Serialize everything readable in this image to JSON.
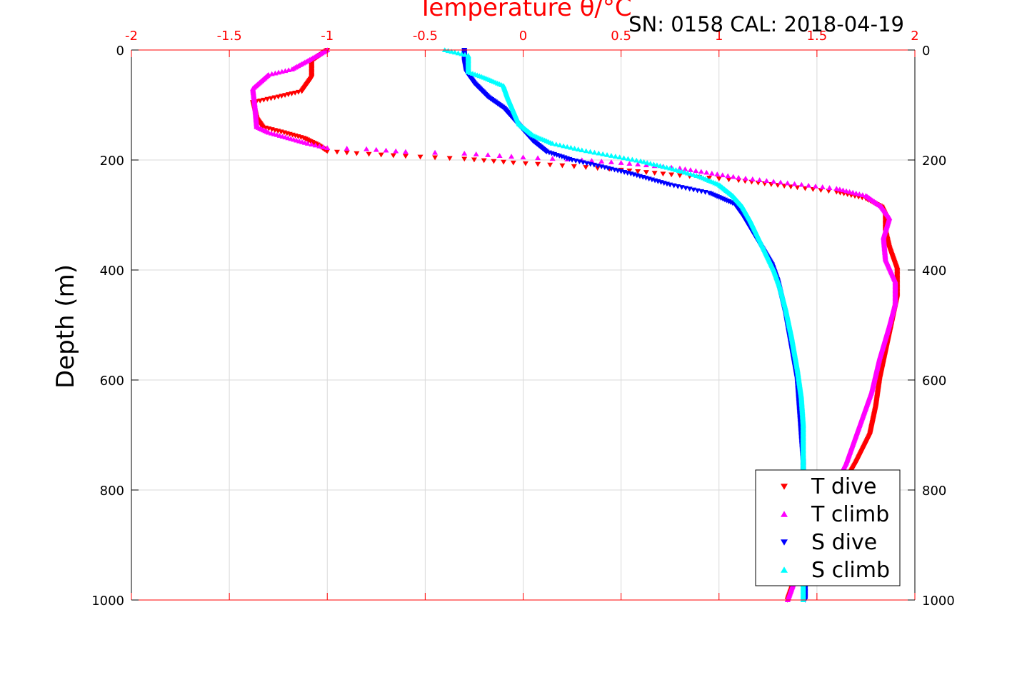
{
  "header": {
    "title": "Temperature θ/°C",
    "annotation": "SN: 0158  CAL: 2018-04-19"
  },
  "chart_data": {
    "type": "scatter",
    "title": "Temperature θ/°C",
    "xlabel": "Temperature θ/°C",
    "ylabel": "Depth (m)",
    "xlim": [
      -2,
      2
    ],
    "ylim": [
      0,
      1000
    ],
    "y_reversed": true,
    "grid": true,
    "x_ticks": [
      "-2",
      "-1.5",
      "-1",
      "-0.5",
      "0",
      "0.5",
      "1",
      "1.5",
      "2"
    ],
    "y_ticks": [
      "0",
      "200",
      "400",
      "600",
      "800",
      "1000"
    ],
    "axis_colors": {
      "top": "#ff0000",
      "bottom": "#ff0000",
      "left": "#000000",
      "right": "#000000",
      "grid": "#d9d9d9"
    },
    "legend_position": "bottom-right",
    "series": [
      {
        "name": "T dive",
        "color": "#ff0000",
        "marker": "triangle-down",
        "points": [
          [
            -1.0,
            0
          ],
          [
            -1.08,
            20
          ],
          [
            -1.08,
            50
          ],
          [
            -1.13,
            75
          ],
          [
            -1.25,
            85
          ],
          [
            -1.38,
            95
          ],
          [
            -1.37,
            110
          ],
          [
            -1.36,
            125
          ],
          [
            -1.33,
            140
          ],
          [
            -1.22,
            150
          ],
          [
            -1.12,
            160
          ],
          [
            -1.05,
            172
          ],
          [
            -1.0,
            184
          ],
          [
            -0.85,
            188
          ],
          [
            -0.6,
            193
          ],
          [
            -0.3,
            198
          ],
          [
            -0.05,
            205
          ],
          [
            0.2,
            210
          ],
          [
            0.5,
            218
          ],
          [
            0.8,
            228
          ],
          [
            1.1,
            237
          ],
          [
            1.4,
            250
          ],
          [
            1.6,
            258
          ],
          [
            1.75,
            270
          ],
          [
            1.83,
            285
          ],
          [
            1.85,
            300
          ],
          [
            1.85,
            330
          ],
          [
            1.87,
            360
          ],
          [
            1.91,
            400
          ],
          [
            1.91,
            450
          ],
          [
            1.88,
            500
          ],
          [
            1.85,
            550
          ],
          [
            1.82,
            600
          ],
          [
            1.8,
            650
          ],
          [
            1.77,
            700
          ],
          [
            1.7,
            750
          ],
          [
            1.62,
            800
          ],
          [
            1.55,
            850
          ],
          [
            1.48,
            900
          ],
          [
            1.4,
            950
          ],
          [
            1.35,
            1000
          ]
        ]
      },
      {
        "name": "T climb",
        "color": "#ff00ff",
        "marker": "triangle-up",
        "points": [
          [
            -1.0,
            0
          ],
          [
            -1.05,
            10
          ],
          [
            -1.18,
            35
          ],
          [
            -1.3,
            45
          ],
          [
            -1.38,
            70
          ],
          [
            -1.37,
            100
          ],
          [
            -1.36,
            140
          ],
          [
            -1.3,
            150
          ],
          [
            -1.2,
            160
          ],
          [
            -1.1,
            170
          ],
          [
            -1.0,
            178
          ],
          [
            -0.8,
            180
          ],
          [
            -0.6,
            185
          ],
          [
            -0.3,
            188
          ],
          [
            0.0,
            195
          ],
          [
            0.3,
            200
          ],
          [
            0.5,
            205
          ],
          [
            0.8,
            215
          ],
          [
            1.1,
            232
          ],
          [
            1.35,
            242
          ],
          [
            1.6,
            252
          ],
          [
            1.75,
            265
          ],
          [
            1.83,
            285
          ],
          [
            1.87,
            305
          ],
          [
            1.84,
            340
          ],
          [
            1.85,
            380
          ],
          [
            1.9,
            420
          ],
          [
            1.9,
            460
          ],
          [
            1.87,
            500
          ],
          [
            1.82,
            560
          ],
          [
            1.78,
            620
          ],
          [
            1.72,
            680
          ],
          [
            1.65,
            750
          ],
          [
            1.58,
            800
          ],
          [
            1.5,
            850
          ],
          [
            1.45,
            900
          ],
          [
            1.4,
            950
          ],
          [
            1.35,
            1000
          ]
        ]
      },
      {
        "name": "S dive",
        "color": "#0000ff",
        "marker": "triangle-down",
        "points": [
          [
            -0.3,
            0
          ],
          [
            -0.3,
            20
          ],
          [
            -0.29,
            40
          ],
          [
            -0.25,
            60
          ],
          [
            -0.18,
            85
          ],
          [
            -0.1,
            105
          ],
          [
            -0.05,
            125
          ],
          [
            0.0,
            145
          ],
          [
            0.05,
            165
          ],
          [
            0.12,
            185
          ],
          [
            0.25,
            200
          ],
          [
            0.4,
            212
          ],
          [
            0.55,
            225
          ],
          [
            0.75,
            245
          ],
          [
            0.95,
            260
          ],
          [
            1.08,
            280
          ],
          [
            1.12,
            300
          ],
          [
            1.17,
            330
          ],
          [
            1.22,
            360
          ],
          [
            1.27,
            390
          ],
          [
            1.3,
            420
          ],
          [
            1.32,
            450
          ],
          [
            1.34,
            480
          ],
          [
            1.36,
            520
          ],
          [
            1.38,
            560
          ],
          [
            1.4,
            600
          ],
          [
            1.41,
            650
          ],
          [
            1.42,
            700
          ],
          [
            1.43,
            750
          ],
          [
            1.43,
            800
          ],
          [
            1.44,
            850
          ],
          [
            1.44,
            900
          ],
          [
            1.44,
            950
          ],
          [
            1.44,
            1000
          ]
        ]
      },
      {
        "name": "S climb",
        "color": "#00ffff",
        "marker": "triangle-up",
        "points": [
          [
            -0.4,
            0
          ],
          [
            -0.28,
            10
          ],
          [
            -0.28,
            40
          ],
          [
            -0.2,
            50
          ],
          [
            -0.1,
            65
          ],
          [
            -0.08,
            85
          ],
          [
            -0.05,
            110
          ],
          [
            -0.02,
            135
          ],
          [
            0.05,
            155
          ],
          [
            0.15,
            170
          ],
          [
            0.3,
            182
          ],
          [
            0.45,
            192
          ],
          [
            0.6,
            202
          ],
          [
            0.75,
            215
          ],
          [
            0.9,
            230
          ],
          [
            1.0,
            245
          ],
          [
            1.07,
            265
          ],
          [
            1.12,
            285
          ],
          [
            1.16,
            310
          ],
          [
            1.2,
            340
          ],
          [
            1.24,
            370
          ],
          [
            1.28,
            400
          ],
          [
            1.31,
            430
          ],
          [
            1.34,
            470
          ],
          [
            1.37,
            520
          ],
          [
            1.4,
            580
          ],
          [
            1.42,
            630
          ],
          [
            1.43,
            680
          ],
          [
            1.43,
            730
          ],
          [
            1.43,
            780
          ],
          [
            1.43,
            830
          ],
          [
            1.43,
            880
          ],
          [
            1.43,
            930
          ],
          [
            1.43,
            1000
          ]
        ]
      }
    ]
  }
}
